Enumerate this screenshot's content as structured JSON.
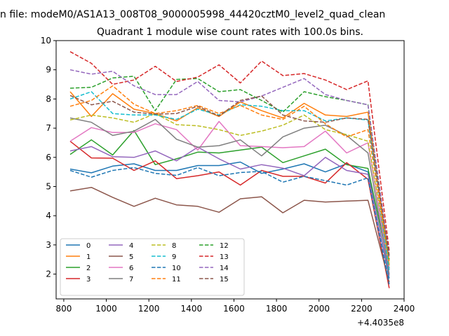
{
  "chart_data": {
    "type": "line",
    "suptitle": "n file: modeM0/AS1A13_008T08_9000005998_44420cztM0_level2_quad_clean",
    "title": "Quadrant 1 module wise count rates with 100.0s bins.",
    "xlabel": "",
    "ylabel": "",
    "x_offset_label": "+4.4035e8",
    "x_tick_labels": [
      "800",
      "1000",
      "1200",
      "1400",
      "1600",
      "1800",
      "2000",
      "2200",
      "2400"
    ],
    "x_ticks": [
      800,
      1000,
      1200,
      1400,
      1600,
      1800,
      2000,
      2200,
      2400
    ],
    "y_ticks": [
      2,
      3,
      4,
      5,
      6,
      7,
      8,
      9,
      10
    ],
    "y_tick_labels": [
      "2",
      "3",
      "4",
      "5",
      "6",
      "7",
      "8",
      "9",
      "10"
    ],
    "xlim": [
      764,
      2400
    ],
    "ylim": [
      1.15,
      10.0
    ],
    "x": [
      830,
      930,
      1030,
      1130,
      1230,
      1330,
      1430,
      1530,
      1630,
      1730,
      1830,
      1930,
      2030,
      2130,
      2230,
      2330
    ],
    "legend_position": "lower-left",
    "series": [
      {
        "name": "0",
        "color": "#1f77b4",
        "dash": "solid",
        "values": [
          5.6,
          5.47,
          5.7,
          5.78,
          5.55,
          5.55,
          5.72,
          5.72,
          5.84,
          5.45,
          5.6,
          5.78,
          5.5,
          5.78,
          5.5,
          1.85
        ]
      },
      {
        "name": "1",
        "color": "#ff7f0e",
        "dash": "solid",
        "values": [
          8.25,
          7.4,
          8.18,
          7.65,
          7.5,
          7.25,
          7.7,
          7.4,
          7.9,
          7.6,
          7.35,
          7.85,
          7.45,
          7.4,
          7.55,
          2.3
        ]
      },
      {
        "name": "2",
        "color": "#2ca02c",
        "dash": "solid",
        "values": [
          6.1,
          6.6,
          6.08,
          6.92,
          5.75,
          5.95,
          6.18,
          6.15,
          6.25,
          6.35,
          5.82,
          6.05,
          6.28,
          5.75,
          5.62,
          2.2
        ]
      },
      {
        "name": "3",
        "color": "#d62728",
        "dash": "solid",
        "values": [
          6.55,
          5.98,
          5.97,
          5.55,
          5.88,
          5.27,
          5.37,
          5.5,
          5.05,
          5.55,
          5.35,
          5.35,
          5.12,
          5.82,
          5.25,
          1.52
        ]
      },
      {
        "name": "4",
        "color": "#9467bd",
        "dash": "solid",
        "values": [
          6.22,
          6.37,
          6.02,
          6.0,
          6.22,
          5.88,
          6.35,
          5.95,
          5.6,
          5.75,
          5.63,
          5.37,
          6.0,
          5.55,
          5.42,
          1.95
        ]
      },
      {
        "name": "5",
        "color": "#8c564b",
        "dash": "solid",
        "values": [
          4.85,
          4.97,
          4.63,
          4.32,
          4.6,
          4.37,
          4.32,
          4.12,
          4.58,
          4.65,
          4.1,
          4.53,
          4.47,
          4.5,
          4.53,
          1.72
        ]
      },
      {
        "name": "6",
        "color": "#e377c2",
        "dash": "solid",
        "values": [
          6.55,
          7.02,
          6.85,
          6.85,
          7.15,
          6.95,
          6.25,
          7.23,
          6.4,
          6.37,
          6.33,
          6.37,
          6.9,
          6.15,
          6.5,
          2.15
        ]
      },
      {
        "name": "7",
        "color": "#7f7f7f",
        "dash": "solid",
        "values": [
          7.35,
          7.2,
          6.75,
          6.9,
          7.3,
          6.62,
          6.35,
          6.4,
          6.6,
          6.05,
          6.7,
          7.0,
          7.1,
          6.75,
          6.15,
          2.0
        ]
      },
      {
        "name": "8",
        "color": "#bcbd22",
        "dash": "dashed",
        "values": [
          7.28,
          7.45,
          7.35,
          7.2,
          7.5,
          7.12,
          7.08,
          6.95,
          6.75,
          6.9,
          7.1,
          7.45,
          6.95,
          6.78,
          6.55,
          2.35
        ]
      },
      {
        "name": "9",
        "color": "#17becf",
        "dash": "dashed",
        "values": [
          8.0,
          8.25,
          7.5,
          7.45,
          7.45,
          7.3,
          7.65,
          7.45,
          7.8,
          7.75,
          7.6,
          7.6,
          7.25,
          7.35,
          7.28,
          2.1
        ]
      },
      {
        "name": "10",
        "color": "#1f77b4",
        "dash": "dashed",
        "values": [
          5.55,
          5.32,
          5.55,
          5.65,
          5.45,
          5.38,
          5.65,
          5.37,
          5.48,
          5.52,
          5.15,
          5.35,
          5.2,
          5.05,
          5.3,
          1.65
        ]
      },
      {
        "name": "11",
        "color": "#ff7f0e",
        "dash": "dashed",
        "values": [
          7.75,
          7.95,
          8.45,
          7.82,
          7.5,
          7.6,
          7.78,
          7.5,
          7.78,
          7.45,
          7.3,
          7.75,
          7.15,
          6.7,
          6.95,
          2.45
        ]
      },
      {
        "name": "12",
        "color": "#2ca02c",
        "dash": "dashed",
        "values": [
          8.37,
          8.4,
          8.72,
          8.78,
          7.6,
          8.67,
          8.7,
          8.25,
          8.32,
          7.95,
          7.55,
          8.25,
          8.08,
          7.95,
          7.8,
          2.5
        ]
      },
      {
        "name": "13",
        "color": "#d62728",
        "dash": "dashed",
        "values": [
          9.62,
          9.22,
          8.5,
          8.65,
          9.12,
          8.6,
          8.75,
          9.17,
          8.55,
          9.3,
          8.8,
          8.87,
          8.65,
          8.32,
          8.62,
          2.8
        ]
      },
      {
        "name": "14",
        "color": "#9467bd",
        "dash": "dashed",
        "values": [
          9.0,
          8.85,
          8.95,
          8.45,
          8.15,
          8.15,
          8.6,
          7.95,
          7.9,
          8.1,
          8.4,
          8.7,
          8.15,
          7.95,
          7.8,
          2.6
        ]
      },
      {
        "name": "15",
        "color": "#8c564b",
        "dash": "dashed",
        "values": [
          8.12,
          7.8,
          7.92,
          7.55,
          7.48,
          7.5,
          7.75,
          7.42,
          7.95,
          8.1,
          7.45,
          7.25,
          7.2,
          7.35,
          7.3,
          2.65
        ]
      }
    ]
  }
}
